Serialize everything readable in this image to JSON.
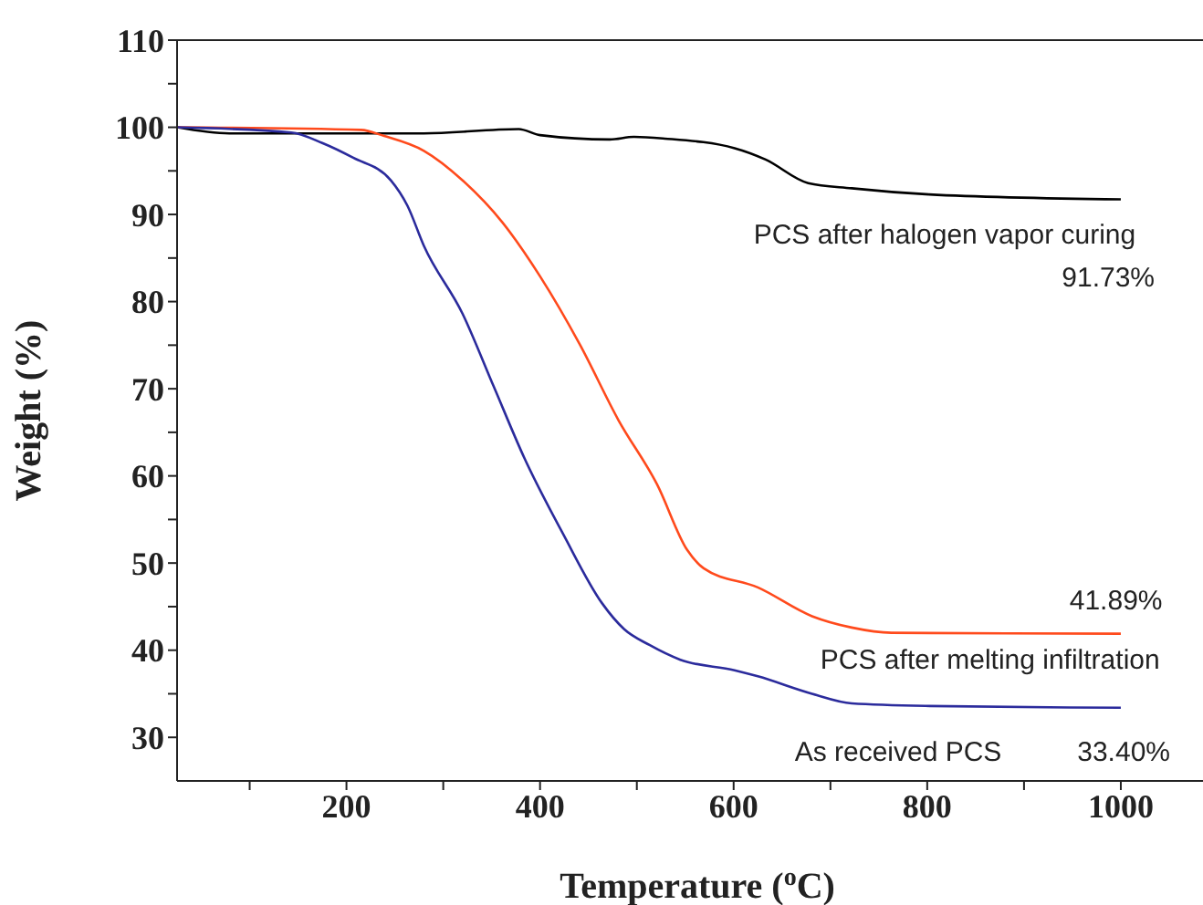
{
  "chart_data": {
    "type": "line",
    "xlabel": "Temperature ($^{o}$C)",
    "ylabel": "Weight (%)",
    "xlim": [
      25,
      1100
    ],
    "xticks": [
      {
        "value": 100,
        "label": null
      },
      200,
      {
        "value": 300,
        "label": null
      },
      400,
      {
        "value": 500,
        "label": null
      },
      600,
      {
        "value": 700,
        "label": null
      },
      800,
      {
        "value": 900,
        "label": null
      },
      1000
    ],
    "ylim": [
      25,
      110
    ],
    "yticks": [
      30,
      {
        "value": 35,
        "label": null
      },
      40,
      {
        "value": 45,
        "label": null
      },
      50,
      {
        "value": 55,
        "label": null
      },
      60,
      {
        "value": 65,
        "label": null
      },
      70,
      {
        "value": 75,
        "label": null
      },
      80,
      {
        "value": 85,
        "label": null
      },
      90,
      {
        "value": 95,
        "label": null
      },
      100,
      {
        "value": 105,
        "label": null
      },
      110
    ],
    "grid": false,
    "legend": false,
    "marker": "none",
    "line_style": "solid",
    "series": [
      {
        "color": "#000000",
        "x": [
          25,
          79,
          280,
          378,
          400,
          472,
          497,
          529,
          601,
          633,
          677,
          722,
          802,
          1000
        ],
        "values": [
          100,
          99.3,
          99.3,
          99.8,
          99.1,
          98.6,
          98.9,
          98.7,
          97.6,
          96.3,
          93.6,
          93.0,
          92.3,
          91.73
        ]
      },
      {
        "color": "#ff4a1c",
        "x": [
          25,
          215,
          239,
          280,
          320,
          361,
          400,
          441,
          481,
          521,
          552,
          569,
          625,
          681,
          722,
          763,
          1000
        ],
        "values": [
          100,
          99.7,
          99,
          97.3,
          93.9,
          89.1,
          82.9,
          75.1,
          66.4,
          59,
          51.5,
          49.4,
          47.2,
          43.9,
          42.6,
          42,
          41.89
        ]
      },
      {
        "color": "#2b2b9c",
        "x": [
          25,
          143,
          175,
          207,
          246,
          263,
          280,
          320,
          352,
          384,
          424,
          464,
          487,
          513,
          545,
          601,
          625,
          681,
          722,
          802,
          1000
        ],
        "values": [
          100,
          99.4,
          98.2,
          96.5,
          93.9,
          91,
          86.4,
          78.6,
          70.3,
          62,
          53.3,
          45.4,
          42.4,
          40.6,
          38.9,
          37.7,
          37,
          35,
          33.9,
          33.6,
          33.4
        ]
      }
    ],
    "annotations": [
      "PCS after halogen vapor curing",
      "91.73%",
      "41.89%",
      "PCS after melting infiltration",
      "As received PCS",
      "33.40%"
    ]
  }
}
